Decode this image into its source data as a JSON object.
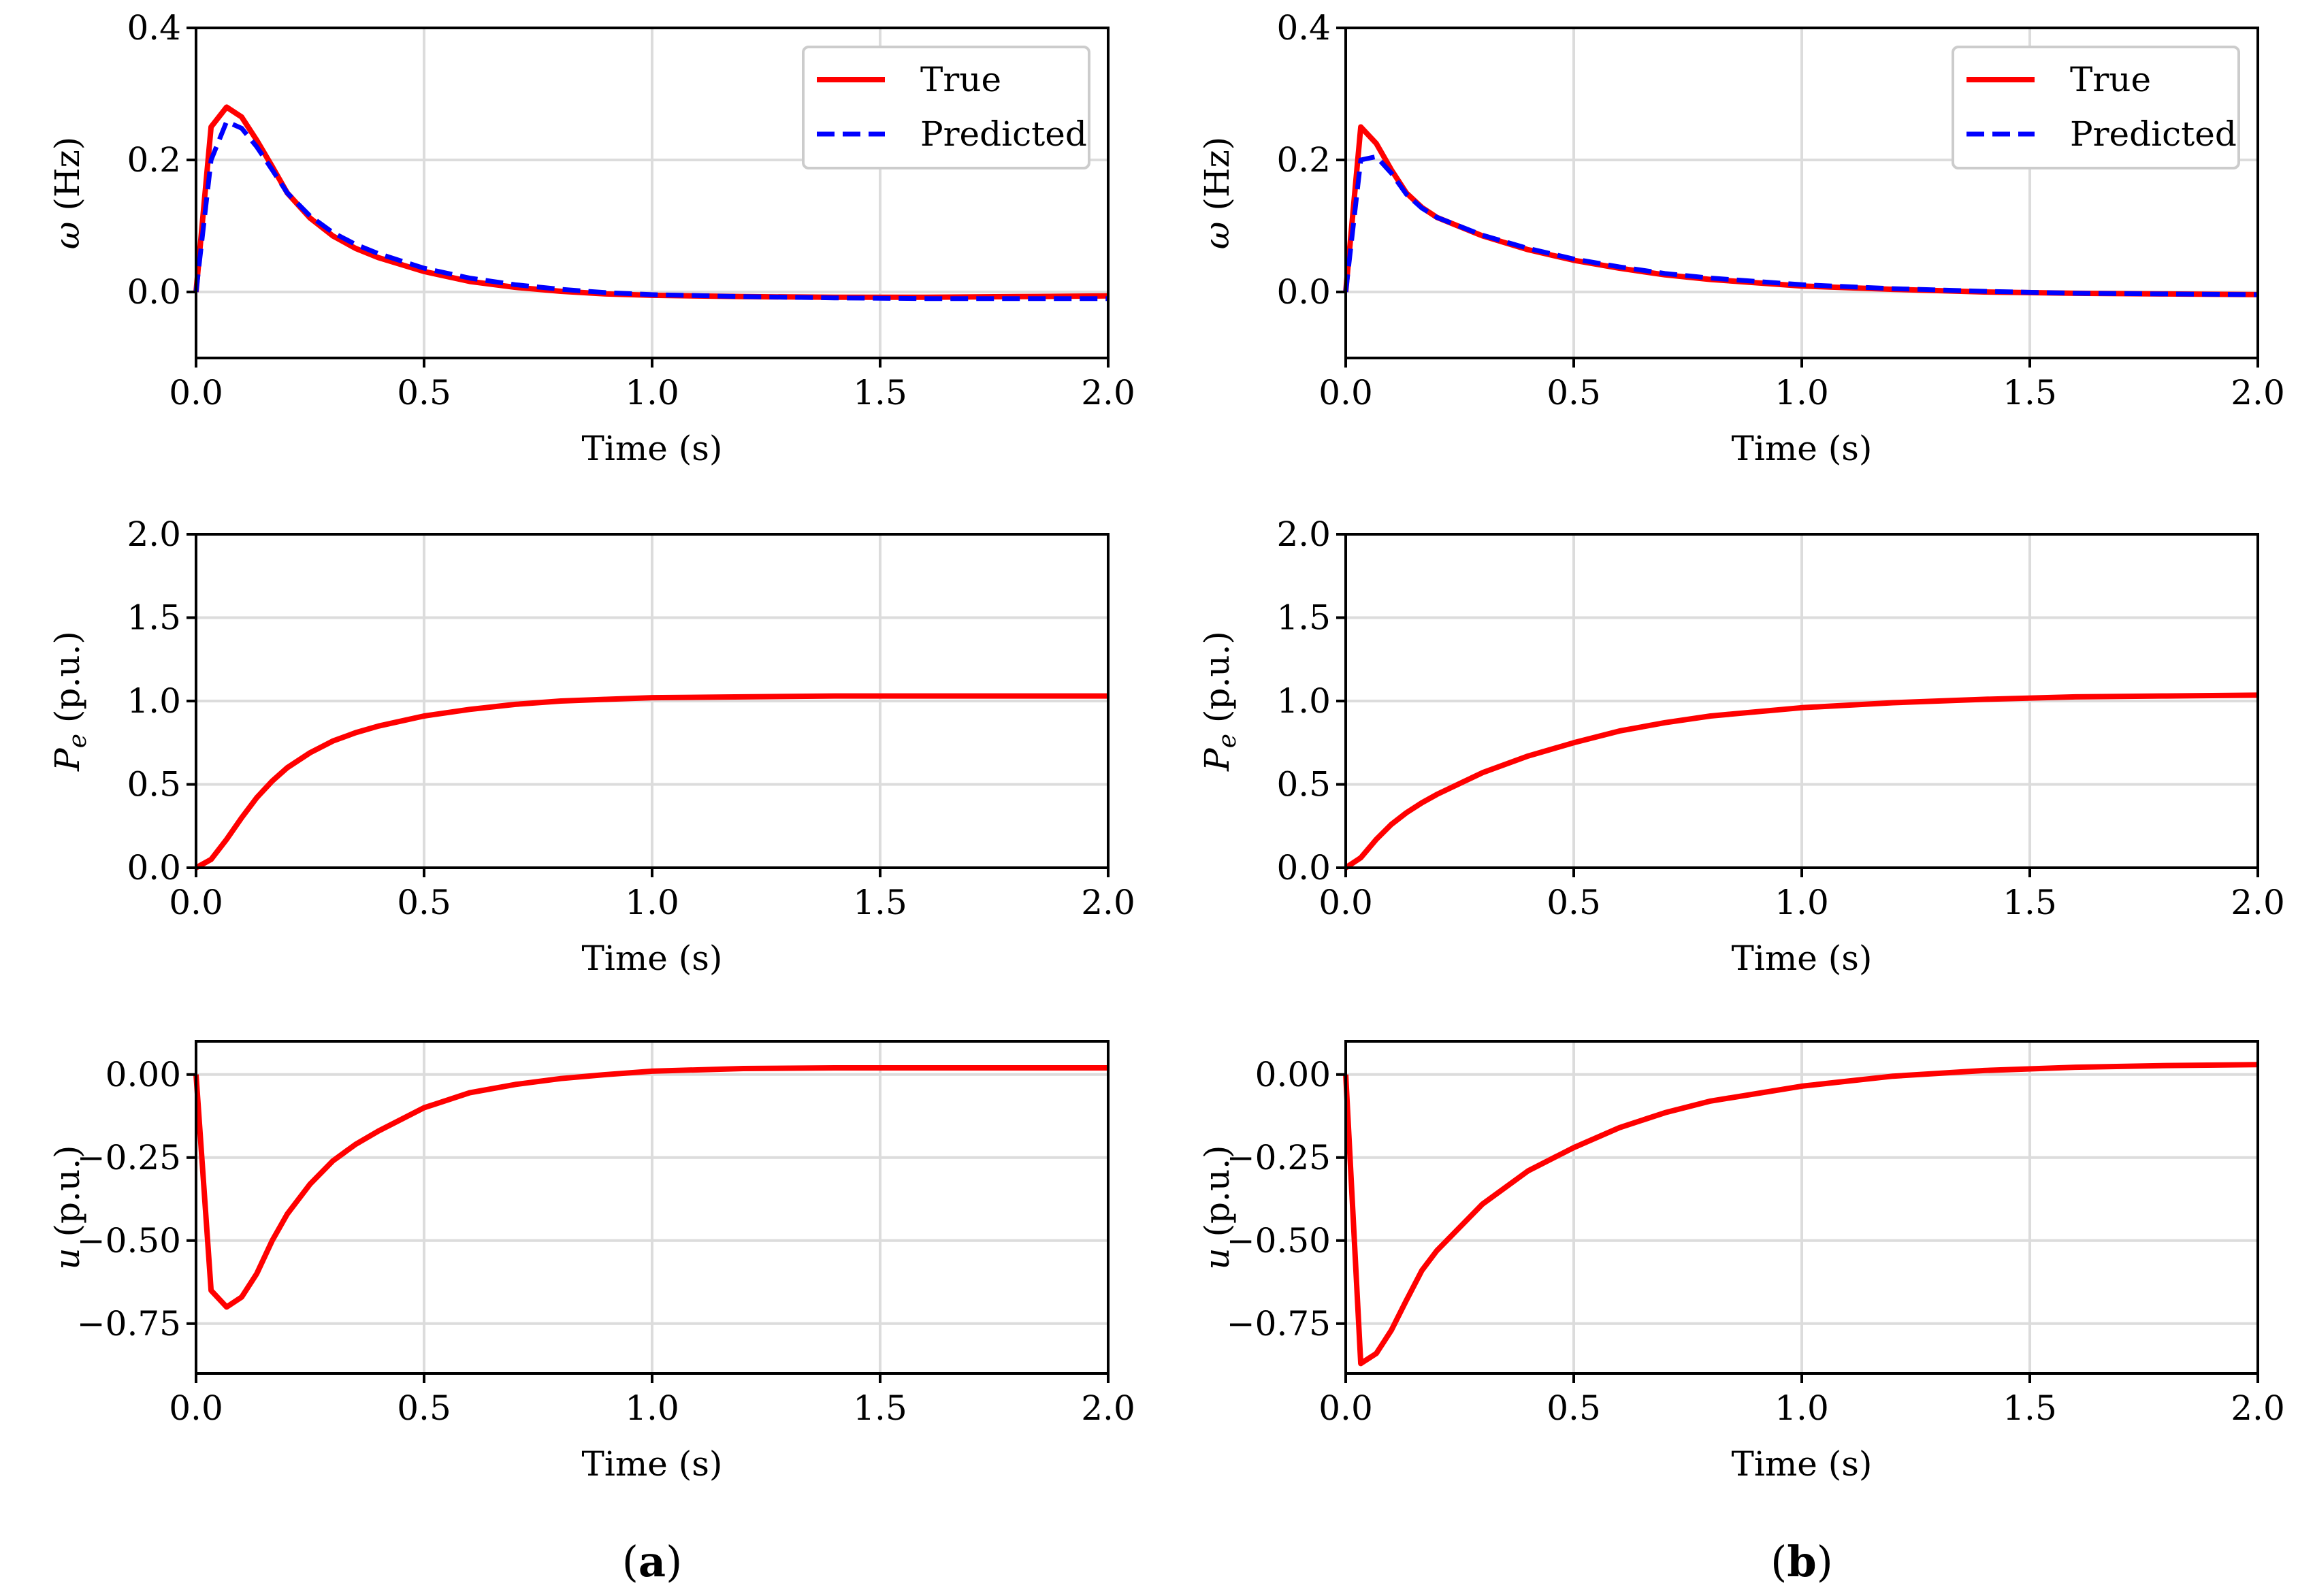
{
  "chart_data": [
    {
      "type": "line",
      "panel": "a",
      "ylabel_symbol": "ω",
      "ylabel": " (Hz)",
      "xlabel": "Time (s)",
      "xlim": [
        0,
        2
      ],
      "ylim": [
        -0.1,
        0.4
      ],
      "xticks": [
        0,
        0.5,
        1,
        1.5,
        2
      ],
      "xtick_labels": [
        "0.0",
        "0.5",
        "1.0",
        "1.5",
        "2.0"
      ],
      "yticks": [
        0,
        0.2,
        0.4
      ],
      "ytick_labels": [
        "0.0",
        "0.2",
        "0.4"
      ],
      "grid": true,
      "legend": [
        "True",
        "Predicted"
      ],
      "legend_position": "top-right",
      "series": [
        {
          "name": "True",
          "color": "#ff0000",
          "style": "solid",
          "x": [
            0,
            0.033,
            0.067,
            0.1,
            0.133,
            0.167,
            0.2,
            0.25,
            0.3,
            0.35,
            0.4,
            0.5,
            0.6,
            0.7,
            0.8,
            0.9,
            1.0,
            1.2,
            1.4,
            1.6,
            1.8,
            2.0
          ],
          "y": [
            0,
            0.25,
            0.28,
            0.265,
            0.23,
            0.19,
            0.15,
            0.112,
            0.085,
            0.066,
            0.052,
            0.031,
            0.016,
            0.007,
            0.001,
            -0.003,
            -0.005,
            -0.007,
            -0.008,
            -0.008,
            -0.007,
            -0.006
          ]
        },
        {
          "name": "Predicted",
          "color": "#0000ff",
          "style": "dashed",
          "x": [
            0,
            0.033,
            0.067,
            0.1,
            0.133,
            0.167,
            0.2,
            0.25,
            0.3,
            0.35,
            0.4,
            0.5,
            0.6,
            0.7,
            0.8,
            0.9,
            1.0,
            1.2,
            1.4,
            1.6,
            1.8,
            2.0
          ],
          "y": [
            0,
            0.2,
            0.258,
            0.248,
            0.22,
            0.185,
            0.15,
            0.115,
            0.09,
            0.072,
            0.058,
            0.036,
            0.021,
            0.011,
            0.004,
            -0.001,
            -0.004,
            -0.007,
            -0.009,
            -0.01,
            -0.01,
            -0.01
          ]
        }
      ]
    },
    {
      "type": "line",
      "panel": "b",
      "ylabel_symbol": "ω",
      "ylabel": " (Hz)",
      "xlabel": "Time (s)",
      "xlim": [
        0,
        2
      ],
      "ylim": [
        -0.1,
        0.4
      ],
      "xticks": [
        0,
        0.5,
        1,
        1.5,
        2
      ],
      "xtick_labels": [
        "0.0",
        "0.5",
        "1.0",
        "1.5",
        "2.0"
      ],
      "yticks": [
        0,
        0.2,
        0.4
      ],
      "ytick_labels": [
        "0.0",
        "0.2",
        "0.4"
      ],
      "grid": true,
      "legend": [
        "True",
        "Predicted"
      ],
      "legend_position": "top-right",
      "series": [
        {
          "name": "True",
          "color": "#ff0000",
          "style": "solid",
          "x": [
            0,
            0.033,
            0.067,
            0.1,
            0.133,
            0.167,
            0.2,
            0.3,
            0.4,
            0.5,
            0.6,
            0.7,
            0.8,
            1.0,
            1.2,
            1.4,
            1.6,
            1.8,
            2.0
          ],
          "y": [
            0,
            0.25,
            0.225,
            0.185,
            0.15,
            0.128,
            0.113,
            0.085,
            0.064,
            0.048,
            0.036,
            0.026,
            0.019,
            0.009,
            0.004,
            0.0,
            -0.002,
            -0.003,
            -0.004
          ]
        },
        {
          "name": "Predicted",
          "color": "#0000ff",
          "style": "dashed",
          "x": [
            0,
            0.033,
            0.067,
            0.1,
            0.133,
            0.167,
            0.2,
            0.3,
            0.4,
            0.5,
            0.6,
            0.7,
            0.8,
            1.0,
            1.2,
            1.4,
            1.6,
            1.8,
            2.0
          ],
          "y": [
            0,
            0.2,
            0.205,
            0.18,
            0.148,
            0.127,
            0.113,
            0.086,
            0.066,
            0.05,
            0.038,
            0.028,
            0.021,
            0.011,
            0.005,
            0.001,
            -0.002,
            -0.003,
            -0.004
          ]
        }
      ]
    },
    {
      "type": "line",
      "panel": "a",
      "ylabel_symbol": "P",
      "ylabel_sub": "e",
      "ylabel": " (p.u.)",
      "xlabel": "Time (s)",
      "xlim": [
        0,
        2
      ],
      "ylim": [
        0,
        2
      ],
      "xticks": [
        0,
        0.5,
        1,
        1.5,
        2
      ],
      "xtick_labels": [
        "0.0",
        "0.5",
        "1.0",
        "1.5",
        "2.0"
      ],
      "yticks": [
        0,
        0.5,
        1,
        1.5,
        2
      ],
      "ytick_labels": [
        "0.0",
        "0.5",
        "1.0",
        "1.5",
        "2.0"
      ],
      "grid": true,
      "series": [
        {
          "name": "True",
          "color": "#ff0000",
          "style": "solid",
          "x": [
            0,
            0.033,
            0.067,
            0.1,
            0.133,
            0.167,
            0.2,
            0.25,
            0.3,
            0.35,
            0.4,
            0.5,
            0.6,
            0.7,
            0.8,
            0.9,
            1.0,
            1.2,
            1.4,
            1.6,
            1.8,
            2.0
          ],
          "y": [
            0,
            0.05,
            0.17,
            0.3,
            0.42,
            0.52,
            0.6,
            0.69,
            0.76,
            0.81,
            0.85,
            0.91,
            0.95,
            0.98,
            1.0,
            1.01,
            1.02,
            1.025,
            1.03,
            1.03,
            1.03,
            1.03
          ]
        }
      ]
    },
    {
      "type": "line",
      "panel": "b",
      "ylabel_symbol": "P",
      "ylabel_sub": "e",
      "ylabel": " (p.u.)",
      "xlabel": "Time (s)",
      "xlim": [
        0,
        2
      ],
      "ylim": [
        0,
        2
      ],
      "xticks": [
        0,
        0.5,
        1,
        1.5,
        2
      ],
      "xtick_labels": [
        "0.0",
        "0.5",
        "1.0",
        "1.5",
        "2.0"
      ],
      "yticks": [
        0,
        0.5,
        1,
        1.5,
        2
      ],
      "ytick_labels": [
        "0.0",
        "0.5",
        "1.0",
        "1.5",
        "2.0"
      ],
      "grid": true,
      "series": [
        {
          "name": "True",
          "color": "#ff0000",
          "style": "solid",
          "x": [
            0,
            0.033,
            0.067,
            0.1,
            0.133,
            0.167,
            0.2,
            0.3,
            0.4,
            0.5,
            0.6,
            0.7,
            0.8,
            1.0,
            1.2,
            1.4,
            1.6,
            1.8,
            2.0
          ],
          "y": [
            0,
            0.06,
            0.17,
            0.26,
            0.33,
            0.39,
            0.44,
            0.57,
            0.67,
            0.75,
            0.82,
            0.87,
            0.91,
            0.96,
            0.99,
            1.01,
            1.025,
            1.03,
            1.035
          ]
        }
      ]
    },
    {
      "type": "line",
      "panel": "a",
      "ylabel_symbol": "u",
      "ylabel": " (p.u.)",
      "xlabel": "Time (s)",
      "xlim": [
        0,
        2
      ],
      "ylim": [
        -0.9,
        0.1
      ],
      "xticks": [
        0,
        0.5,
        1,
        1.5,
        2
      ],
      "xtick_labels": [
        "0.0",
        "0.5",
        "1.0",
        "1.5",
        "2.0"
      ],
      "yticks": [
        -0.75,
        -0.5,
        -0.25,
        0
      ],
      "ytick_labels": [
        "−0.75",
        "−0.50",
        "−0.25",
        "0.00"
      ],
      "grid": true,
      "series": [
        {
          "name": "True",
          "color": "#ff0000",
          "style": "solid",
          "x": [
            0,
            0.033,
            0.067,
            0.1,
            0.133,
            0.167,
            0.2,
            0.25,
            0.3,
            0.35,
            0.4,
            0.5,
            0.6,
            0.7,
            0.8,
            0.9,
            1.0,
            1.2,
            1.4,
            1.6,
            1.8,
            2.0
          ],
          "y": [
            0,
            -0.65,
            -0.7,
            -0.67,
            -0.6,
            -0.5,
            -0.42,
            -0.33,
            -0.26,
            -0.21,
            -0.17,
            -0.1,
            -0.055,
            -0.03,
            -0.012,
            0.0,
            0.01,
            0.018,
            0.02,
            0.02,
            0.02,
            0.02
          ]
        }
      ]
    },
    {
      "type": "line",
      "panel": "b",
      "ylabel_symbol": "u",
      "ylabel": " (p.u.)",
      "xlabel": "Time (s)",
      "xlim": [
        0,
        2
      ],
      "ylim": [
        -0.9,
        0.1
      ],
      "xticks": [
        0,
        0.5,
        1,
        1.5,
        2
      ],
      "xtick_labels": [
        "0.0",
        "0.5",
        "1.0",
        "1.5",
        "2.0"
      ],
      "yticks": [
        -0.75,
        -0.5,
        -0.25,
        0
      ],
      "ytick_labels": [
        "−0.75",
        "−0.50",
        "−0.25",
        "0.00"
      ],
      "grid": true,
      "series": [
        {
          "name": "True",
          "color": "#ff0000",
          "style": "solid",
          "x": [
            0,
            0.033,
            0.067,
            0.1,
            0.133,
            0.167,
            0.2,
            0.3,
            0.4,
            0.5,
            0.6,
            0.7,
            0.8,
            1.0,
            1.2,
            1.4,
            1.6,
            1.8,
            2.0
          ],
          "y": [
            0,
            -0.87,
            -0.84,
            -0.77,
            -0.68,
            -0.59,
            -0.53,
            -0.39,
            -0.29,
            -0.22,
            -0.16,
            -0.115,
            -0.08,
            -0.035,
            -0.005,
            0.012,
            0.022,
            0.027,
            0.03
          ]
        }
      ]
    }
  ],
  "panel_labels": [
    "a",
    "b"
  ]
}
